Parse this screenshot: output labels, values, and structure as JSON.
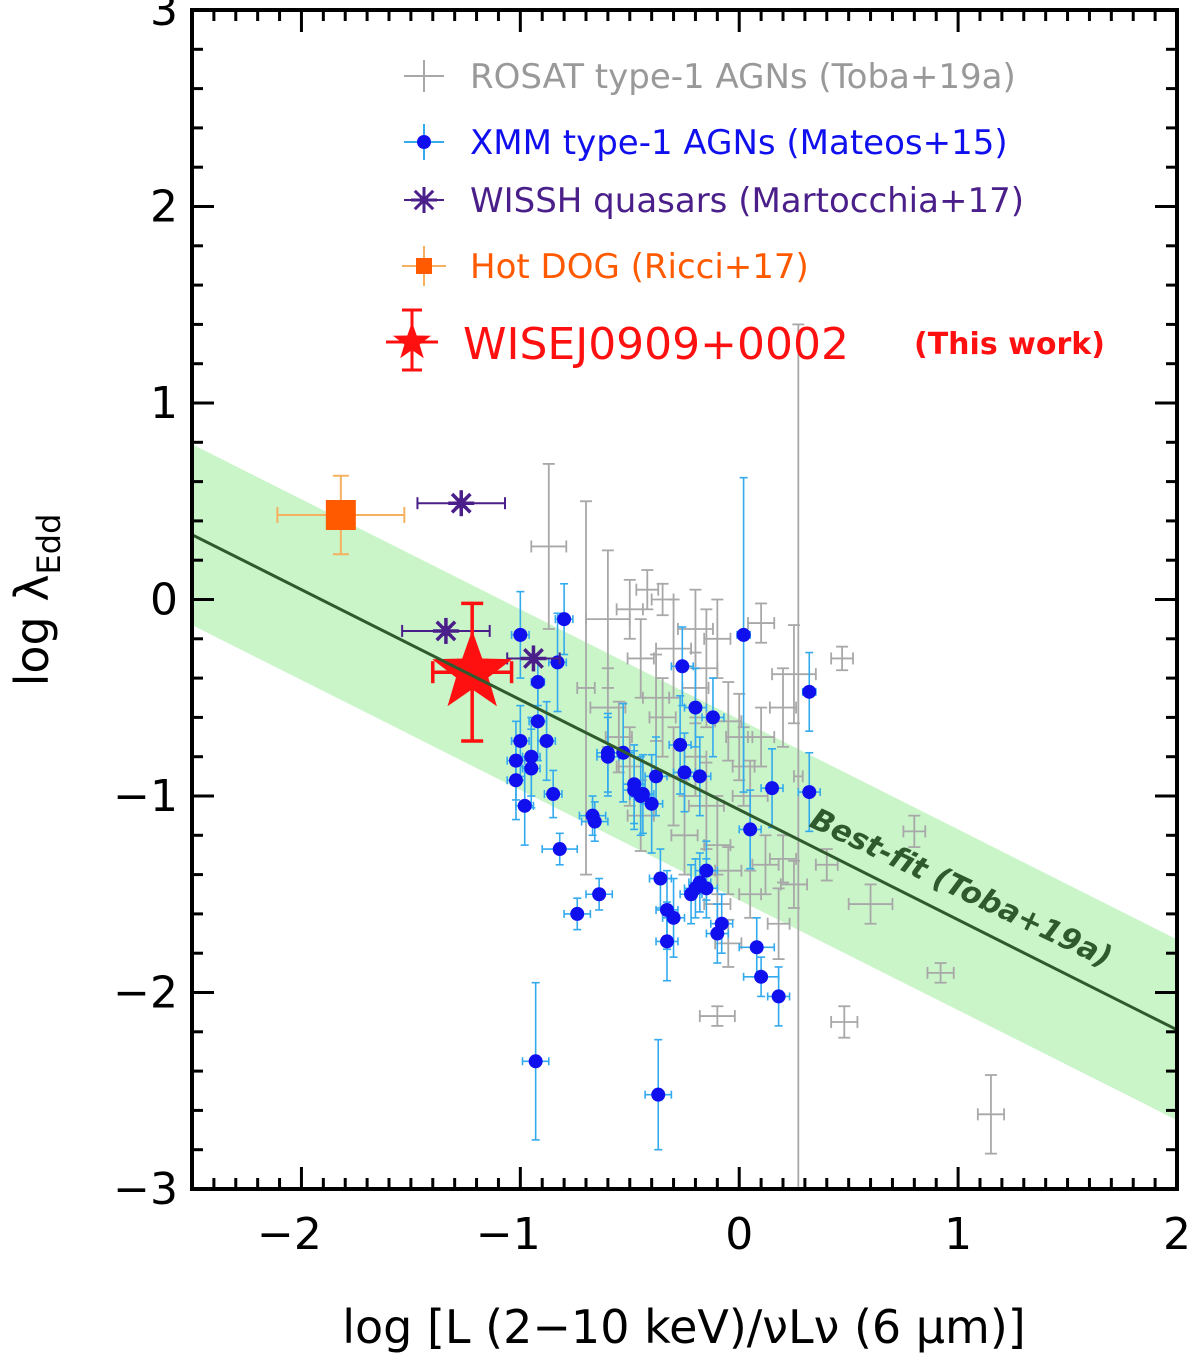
{
  "colors": {
    "rosat": "#a8a8a8",
    "xmm_point": "#1010ee",
    "xmm_err": "#33aaee",
    "wissh": "#4b1f8a",
    "hotdog": "#ff5a00",
    "hotdog_err": "#f5b060",
    "this_work": "#ff1010",
    "fit_line": "#2e5a2e",
    "fit_band": "#c9f5c9"
  },
  "chart_data": {
    "type": "scatter",
    "xlabel": "log [L (2−10 keV)/νLν (6 μm)]",
    "ylabel": "log λEdd",
    "xlim": [
      -2.5,
      2.0
    ],
    "ylim": [
      -3.0,
      3.0
    ],
    "xticks": [
      -2,
      -1,
      0,
      1,
      2
    ],
    "yticks": [
      -3,
      -2,
      -1,
      0,
      1,
      2,
      3
    ],
    "xtick_labels": [
      "−2",
      "−1",
      "0",
      "1",
      "2"
    ],
    "ytick_labels": [
      "−3",
      "−2",
      "−1",
      "0",
      "1",
      "2",
      "3"
    ],
    "best_fit": {
      "label": "Best-fit (Toba+19a)",
      "slope": -0.56,
      "intercept": -1.07,
      "band_halfwidth": 0.46
    },
    "legend": [
      {
        "key": "rosat",
        "text": "ROSAT type-1 AGNs (Toba+19a)"
      },
      {
        "key": "xmm",
        "text": "XMM type-1 AGNs (Mateos+15)"
      },
      {
        "key": "wissh",
        "text": "WISSH quasars (Martocchia+17)"
      },
      {
        "key": "hotdog",
        "text": "Hot DOG (Ricci+17)"
      },
      {
        "key": "this",
        "text": "WISEJ0909+0002",
        "note": "(This work)"
      }
    ],
    "series": [
      {
        "name": "ROSAT type-1 AGNs (Toba+19a)",
        "points": [
          [
            -0.87,
            0.27,
            0.08,
            0.42
          ],
          [
            -0.6,
            -0.1,
            0.1,
            0.35
          ],
          [
            -0.42,
            0.05,
            0.05,
            0.1
          ],
          [
            -0.35,
            0.0,
            0.05,
            0.08
          ],
          [
            -0.5,
            -0.05,
            0.06,
            0.15
          ],
          [
            -0.2,
            -0.15,
            0.08,
            0.2
          ],
          [
            -0.1,
            -0.2,
            0.06,
            0.2
          ],
          [
            0.1,
            -0.12,
            0.06,
            0.1
          ],
          [
            0.47,
            -0.3,
            0.05,
            0.06
          ],
          [
            -0.45,
            -0.3,
            0.06,
            0.2
          ],
          [
            -0.3,
            -0.25,
            0.08,
            0.25
          ],
          [
            -0.6,
            -0.55,
            0.08,
            0.2
          ],
          [
            -0.38,
            -0.5,
            0.06,
            0.22
          ],
          [
            -0.2,
            -0.45,
            0.06,
            0.18
          ],
          [
            0.25,
            -0.38,
            0.1,
            0.25
          ],
          [
            -0.05,
            -0.62,
            0.06,
            0.2
          ],
          [
            0.0,
            -0.7,
            0.06,
            0.22
          ],
          [
            0.1,
            -0.7,
            0.06,
            0.15
          ],
          [
            -0.5,
            -0.85,
            0.06,
            0.2
          ],
          [
            -0.3,
            -0.9,
            0.06,
            0.25
          ],
          [
            -0.15,
            -1.05,
            0.08,
            0.22
          ],
          [
            0.05,
            -1.0,
            0.08,
            0.18
          ],
          [
            -0.25,
            -1.2,
            0.06,
            0.2
          ],
          [
            -0.1,
            -1.25,
            0.06,
            0.25
          ],
          [
            0.12,
            -1.35,
            0.06,
            0.15
          ],
          [
            -0.05,
            -1.38,
            0.06,
            0.12
          ],
          [
            0.2,
            -1.32,
            0.06,
            0.12
          ],
          [
            0.4,
            -1.35,
            0.05,
            0.08
          ],
          [
            0.25,
            -1.45,
            0.06,
            0.12
          ],
          [
            0.6,
            -1.55,
            0.1,
            0.1
          ],
          [
            0.8,
            -1.18,
            0.05,
            0.08
          ],
          [
            0.92,
            -1.9,
            0.06,
            0.05
          ],
          [
            0.48,
            -2.15,
            0.06,
            0.08
          ],
          [
            -0.1,
            -2.12,
            0.08,
            0.05
          ],
          [
            0.18,
            -1.65,
            0.05,
            0.18
          ],
          [
            -0.05,
            -1.75,
            0.06,
            0.12
          ],
          [
            1.15,
            -2.62,
            0.06,
            0.2
          ],
          [
            0.27,
            -0.9,
            0.02,
            2.3
          ],
          [
            -0.7,
            -0.45,
            0.04,
            0.95
          ],
          [
            -0.15,
            -0.35,
            0.05,
            0.3
          ],
          [
            0.02,
            -0.85,
            0.05,
            0.2
          ],
          [
            -0.55,
            -0.7,
            0.06,
            0.18
          ],
          [
            -0.35,
            -0.6,
            0.06,
            0.2
          ],
          [
            -0.2,
            -0.8,
            0.05,
            0.2
          ],
          [
            0.2,
            -0.55,
            0.06,
            0.2
          ],
          [
            -0.45,
            -1.1,
            0.06,
            0.18
          ],
          [
            -0.1,
            -1.55,
            0.06,
            0.15
          ],
          [
            0.05,
            -1.5,
            0.05,
            0.12
          ]
        ]
      },
      {
        "name": "XMM type-1 AGNs (Mateos+15)",
        "points": [
          [
            -1.0,
            -0.18,
            0.04,
            0.22
          ],
          [
            -0.8,
            -0.1,
            0.04,
            0.18
          ],
          [
            0.02,
            -0.18,
            0.03,
            0.8
          ],
          [
            -0.92,
            -0.42,
            0.03,
            0.12
          ],
          [
            -0.83,
            -0.32,
            0.04,
            0.25
          ],
          [
            -1.0,
            -0.72,
            0.04,
            0.18
          ],
          [
            -0.95,
            -0.8,
            0.04,
            0.2
          ],
          [
            -0.92,
            -0.62,
            0.04,
            0.2
          ],
          [
            -0.88,
            -0.72,
            0.04,
            0.2
          ],
          [
            -1.02,
            -0.82,
            0.04,
            0.2
          ],
          [
            -1.02,
            -0.92,
            0.04,
            0.2
          ],
          [
            -0.95,
            -0.86,
            0.04,
            0.2
          ],
          [
            -0.98,
            -1.05,
            0.04,
            0.2
          ],
          [
            -0.85,
            -0.99,
            0.04,
            0.12
          ],
          [
            -0.82,
            -1.27,
            0.08,
            0.08
          ],
          [
            -0.67,
            -1.1,
            0.06,
            0.1
          ],
          [
            -0.66,
            -1.13,
            0.06,
            0.1
          ],
          [
            -0.64,
            -1.5,
            0.06,
            0.08
          ],
          [
            -0.74,
            -1.6,
            0.06,
            0.08
          ],
          [
            -0.6,
            -0.78,
            0.05,
            0.2
          ],
          [
            -0.53,
            -0.78,
            0.05,
            0.25
          ],
          [
            -0.48,
            -0.94,
            0.05,
            0.2
          ],
          [
            -0.44,
            -0.99,
            0.05,
            0.2
          ],
          [
            -0.4,
            -1.04,
            0.05,
            0.25
          ],
          [
            -0.38,
            -0.9,
            0.05,
            0.2
          ],
          [
            -0.36,
            -1.42,
            0.05,
            0.15
          ],
          [
            -0.33,
            -1.58,
            0.05,
            0.2
          ],
          [
            -0.33,
            -1.74,
            0.05,
            0.2
          ],
          [
            -0.3,
            -1.62,
            0.05,
            0.2
          ],
          [
            -0.27,
            -0.74,
            0.05,
            0.25
          ],
          [
            -0.25,
            -0.88,
            0.05,
            0.2
          ],
          [
            -0.26,
            -0.34,
            0.05,
            0.2
          ],
          [
            -0.22,
            -1.5,
            0.05,
            0.15
          ],
          [
            -0.2,
            -1.47,
            0.05,
            0.15
          ],
          [
            -0.18,
            -1.44,
            0.05,
            0.15
          ],
          [
            -0.15,
            -1.47,
            0.05,
            0.15
          ],
          [
            -0.15,
            -1.38,
            0.05,
            0.15
          ],
          [
            -0.2,
            -0.55,
            0.05,
            0.2
          ],
          [
            -0.12,
            -0.6,
            0.05,
            0.2
          ],
          [
            -0.18,
            -0.9,
            0.05,
            0.2
          ],
          [
            -0.1,
            -1.7,
            0.05,
            0.15
          ],
          [
            -0.08,
            -1.65,
            0.05,
            0.15
          ],
          [
            0.05,
            -1.17,
            0.05,
            0.2
          ],
          [
            0.08,
            -1.77,
            0.08,
            0.15
          ],
          [
            0.1,
            -1.92,
            0.08,
            0.1
          ],
          [
            0.18,
            -2.02,
            0.05,
            0.15
          ],
          [
            0.32,
            -0.98,
            0.05,
            0.2
          ],
          [
            0.15,
            -0.96,
            0.05,
            0.2
          ],
          [
            0.32,
            -0.47,
            0.03,
            0.2
          ],
          [
            -0.93,
            -2.35,
            0.06,
            0.4
          ],
          [
            -0.37,
            -2.52,
            0.06,
            0.28
          ],
          [
            -0.48,
            -0.97,
            0.05,
            0.2
          ],
          [
            -0.6,
            -0.8,
            0.05,
            0.2
          ],
          [
            -0.45,
            -1.0,
            0.05,
            0.2
          ]
        ]
      },
      {
        "name": "WISSH quasars (Martocchia+17)",
        "points": [
          [
            -1.27,
            0.49,
            0.2,
            0.02
          ],
          [
            -1.34,
            -0.16,
            0.2,
            0.02
          ],
          [
            -0.94,
            -0.3,
            0.12,
            0.02
          ]
        ]
      },
      {
        "name": "Hot DOG (Ricci+17)",
        "points": [
          [
            -1.82,
            0.43,
            0.29,
            0.2
          ]
        ]
      },
      {
        "name": "WISEJ0909+0002 (This work)",
        "points": [
          [
            -1.22,
            -0.37,
            0.18,
            0.35
          ]
        ]
      }
    ]
  }
}
